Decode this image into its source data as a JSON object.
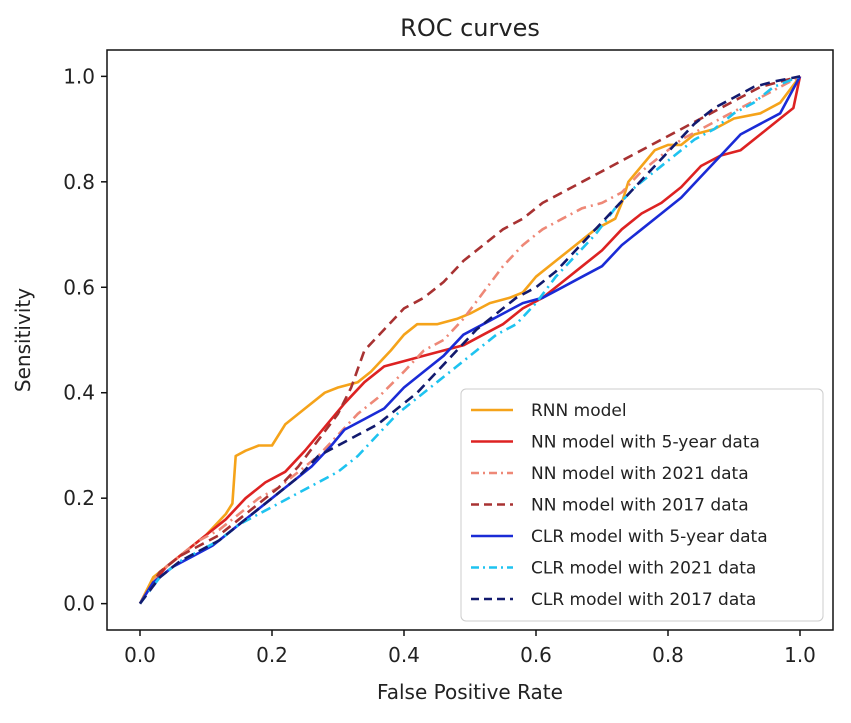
{
  "chart_data": {
    "type": "line",
    "title": "ROC curves",
    "xlabel": "False Positive Rate",
    "ylabel": "Sensitivity",
    "xlim": [
      -0.05,
      1.05
    ],
    "ylim": [
      -0.05,
      1.05
    ],
    "xticks": [
      0.0,
      0.2,
      0.4,
      0.6,
      0.8,
      1.0
    ],
    "yticks": [
      0.0,
      0.2,
      0.4,
      0.6,
      0.8,
      1.0
    ],
    "tick_labels": [
      "0.0",
      "0.2",
      "0.4",
      "0.6",
      "0.8",
      "1.0"
    ],
    "grid": false,
    "legend_position": "bottom-right",
    "series": [
      {
        "name": "RNN model",
        "color": "#f5a31a",
        "style": "solid",
        "x": [
          0,
          0.02,
          0.04,
          0.06,
          0.08,
          0.1,
          0.13,
          0.14,
          0.145,
          0.16,
          0.18,
          0.2,
          0.22,
          0.25,
          0.28,
          0.3,
          0.33,
          0.35,
          0.38,
          0.4,
          0.42,
          0.45,
          0.48,
          0.5,
          0.53,
          0.56,
          0.58,
          0.6,
          0.63,
          0.66,
          0.69,
          0.72,
          0.73,
          0.74,
          0.76,
          0.78,
          0.8,
          0.82,
          0.84,
          0.87,
          0.9,
          0.94,
          0.97,
          1.0
        ],
        "y": [
          0,
          0.05,
          0.07,
          0.09,
          0.11,
          0.13,
          0.17,
          0.19,
          0.28,
          0.29,
          0.3,
          0.3,
          0.34,
          0.37,
          0.4,
          0.41,
          0.42,
          0.44,
          0.48,
          0.51,
          0.53,
          0.53,
          0.54,
          0.55,
          0.57,
          0.58,
          0.59,
          0.62,
          0.65,
          0.68,
          0.71,
          0.73,
          0.76,
          0.8,
          0.83,
          0.86,
          0.87,
          0.87,
          0.89,
          0.9,
          0.92,
          0.93,
          0.95,
          1.0
        ]
      },
      {
        "name": "NN model with 5-year data",
        "color": "#dd2222",
        "style": "solid",
        "x": [
          0,
          0.02,
          0.04,
          0.07,
          0.1,
          0.13,
          0.16,
          0.19,
          0.22,
          0.25,
          0.27,
          0.29,
          0.31,
          0.34,
          0.37,
          0.4,
          0.43,
          0.46,
          0.49,
          0.52,
          0.55,
          0.58,
          0.61,
          0.64,
          0.67,
          0.7,
          0.73,
          0.76,
          0.79,
          0.82,
          0.85,
          0.88,
          0.91,
          0.94,
          0.97,
          0.99,
          1.0
        ],
        "y": [
          0,
          0.04,
          0.07,
          0.1,
          0.13,
          0.16,
          0.2,
          0.23,
          0.25,
          0.29,
          0.32,
          0.35,
          0.38,
          0.42,
          0.45,
          0.46,
          0.47,
          0.48,
          0.49,
          0.51,
          0.53,
          0.56,
          0.58,
          0.61,
          0.64,
          0.67,
          0.71,
          0.74,
          0.76,
          0.79,
          0.83,
          0.85,
          0.86,
          0.89,
          0.92,
          0.94,
          1.0
        ]
      },
      {
        "name": "NN model with 2021 data",
        "color": "#ee8877",
        "style": "dashdot",
        "x": [
          0,
          0.03,
          0.06,
          0.09,
          0.12,
          0.15,
          0.18,
          0.21,
          0.24,
          0.27,
          0.3,
          0.33,
          0.36,
          0.4,
          0.43,
          0.46,
          0.49,
          0.52,
          0.55,
          0.58,
          0.61,
          0.64,
          0.67,
          0.7,
          0.73,
          0.76,
          0.79,
          0.82,
          0.85,
          0.88,
          0.91,
          0.94,
          0.97,
          1.0
        ],
        "y": [
          0,
          0.06,
          0.09,
          0.12,
          0.14,
          0.17,
          0.2,
          0.22,
          0.25,
          0.28,
          0.32,
          0.36,
          0.39,
          0.44,
          0.48,
          0.5,
          0.54,
          0.59,
          0.64,
          0.68,
          0.71,
          0.73,
          0.75,
          0.76,
          0.78,
          0.82,
          0.85,
          0.88,
          0.9,
          0.92,
          0.94,
          0.96,
          0.98,
          1.0
        ]
      },
      {
        "name": "NN model with 2017 data",
        "color": "#a83232",
        "style": "dashed",
        "x": [
          0,
          0.03,
          0.06,
          0.09,
          0.12,
          0.15,
          0.18,
          0.21,
          0.24,
          0.27,
          0.3,
          0.32,
          0.34,
          0.37,
          0.4,
          0.43,
          0.46,
          0.49,
          0.52,
          0.55,
          0.58,
          0.61,
          0.64,
          0.67,
          0.7,
          0.73,
          0.76,
          0.79,
          0.82,
          0.85,
          0.88,
          0.91,
          0.94,
          0.97,
          1.0
        ],
        "y": [
          0,
          0.06,
          0.09,
          0.11,
          0.13,
          0.16,
          0.19,
          0.22,
          0.26,
          0.31,
          0.36,
          0.41,
          0.48,
          0.52,
          0.56,
          0.58,
          0.61,
          0.65,
          0.68,
          0.71,
          0.73,
          0.76,
          0.78,
          0.8,
          0.82,
          0.84,
          0.86,
          0.88,
          0.9,
          0.92,
          0.94,
          0.96,
          0.98,
          0.99,
          1.0
        ]
      },
      {
        "name": "CLR model with 5-year data",
        "color": "#1a2bd6",
        "style": "solid",
        "x": [
          0,
          0.02,
          0.05,
          0.08,
          0.11,
          0.14,
          0.17,
          0.2,
          0.23,
          0.26,
          0.29,
          0.31,
          0.34,
          0.37,
          0.4,
          0.43,
          0.46,
          0.49,
          0.52,
          0.55,
          0.58,
          0.61,
          0.64,
          0.67,
          0.7,
          0.73,
          0.76,
          0.79,
          0.82,
          0.85,
          0.88,
          0.91,
          0.94,
          0.97,
          1.0
        ],
        "y": [
          0,
          0.04,
          0.07,
          0.09,
          0.11,
          0.14,
          0.17,
          0.2,
          0.23,
          0.26,
          0.3,
          0.33,
          0.35,
          0.37,
          0.41,
          0.44,
          0.47,
          0.51,
          0.53,
          0.55,
          0.57,
          0.58,
          0.6,
          0.62,
          0.64,
          0.68,
          0.71,
          0.74,
          0.77,
          0.81,
          0.85,
          0.89,
          0.91,
          0.93,
          1.0
        ]
      },
      {
        "name": "CLR model with 2021 data",
        "color": "#1ec3f0",
        "style": "dashdot",
        "x": [
          0,
          0.03,
          0.06,
          0.09,
          0.12,
          0.15,
          0.18,
          0.21,
          0.24,
          0.27,
          0.3,
          0.33,
          0.36,
          0.39,
          0.42,
          0.45,
          0.48,
          0.51,
          0.54,
          0.57,
          0.6,
          0.63,
          0.66,
          0.69,
          0.72,
          0.75,
          0.78,
          0.81,
          0.84,
          0.87,
          0.9,
          0.93,
          0.96,
          1.0
        ],
        "y": [
          0,
          0.05,
          0.08,
          0.1,
          0.12,
          0.15,
          0.17,
          0.19,
          0.21,
          0.23,
          0.25,
          0.28,
          0.32,
          0.36,
          0.39,
          0.42,
          0.45,
          0.48,
          0.51,
          0.53,
          0.57,
          0.62,
          0.66,
          0.7,
          0.75,
          0.79,
          0.82,
          0.85,
          0.88,
          0.9,
          0.93,
          0.95,
          0.98,
          1.0
        ]
      },
      {
        "name": "CLR model with 2017 data",
        "color": "#121a6e",
        "style": "dashed",
        "x": [
          0,
          0.03,
          0.06,
          0.09,
          0.12,
          0.15,
          0.18,
          0.21,
          0.24,
          0.27,
          0.3,
          0.33,
          0.36,
          0.39,
          0.42,
          0.45,
          0.48,
          0.51,
          0.54,
          0.57,
          0.6,
          0.63,
          0.66,
          0.69,
          0.72,
          0.75,
          0.78,
          0.81,
          0.84,
          0.87,
          0.9,
          0.93,
          0.96,
          1.0
        ],
        "y": [
          0,
          0.05,
          0.08,
          0.1,
          0.12,
          0.15,
          0.18,
          0.21,
          0.24,
          0.28,
          0.3,
          0.32,
          0.34,
          0.37,
          0.4,
          0.44,
          0.48,
          0.52,
          0.55,
          0.58,
          0.6,
          0.63,
          0.67,
          0.71,
          0.75,
          0.79,
          0.83,
          0.87,
          0.91,
          0.94,
          0.96,
          0.98,
          0.99,
          1.0
        ]
      }
    ]
  }
}
